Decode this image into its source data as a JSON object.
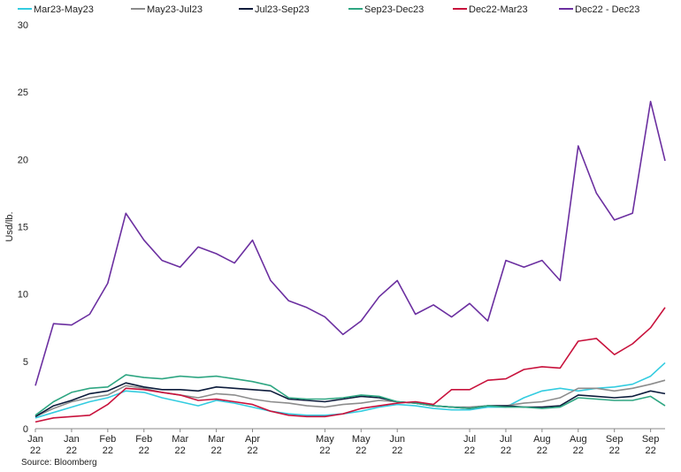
{
  "chart_data": {
    "type": "line",
    "title": "",
    "ylabel": "Usd/lb.",
    "xlabel": "",
    "ylim": [
      0,
      30
    ],
    "yticks": [
      0,
      5,
      10,
      15,
      20,
      25,
      30
    ],
    "x_tick_labels": [
      {
        "month": "Jan",
        "year": "22",
        "t": 0.0
      },
      {
        "month": "Jan",
        "year": "22",
        "t": 0.5
      },
      {
        "month": "Feb",
        "year": "22",
        "t": 1.0
      },
      {
        "month": "Feb",
        "year": "22",
        "t": 1.5
      },
      {
        "month": "Mar",
        "year": "22",
        "t": 2.0
      },
      {
        "month": "Mar",
        "year": "22",
        "t": 2.5
      },
      {
        "month": "Apr",
        "year": "22",
        "t": 3.0
      },
      {
        "month": "May",
        "year": "22",
        "t": 4.0
      },
      {
        "month": "May",
        "year": "22",
        "t": 4.5
      },
      {
        "month": "Jun",
        "year": "22",
        "t": 5.0
      },
      {
        "month": "Jul",
        "year": "22",
        "t": 6.0
      },
      {
        "month": "Jul",
        "year": "22",
        "t": 6.5
      },
      {
        "month": "Aug",
        "year": "22",
        "t": 7.0
      },
      {
        "month": "Aug",
        "year": "22",
        "t": 7.5
      },
      {
        "month": "Sep",
        "year": "22",
        "t": 8.0
      },
      {
        "month": "Sep",
        "year": "22",
        "t": 8.5
      }
    ],
    "x": [
      0,
      0.25,
      0.5,
      0.75,
      1.0,
      1.25,
      1.5,
      1.75,
      2.0,
      2.25,
      2.5,
      2.75,
      3.0,
      3.25,
      3.5,
      3.75,
      4.0,
      4.25,
      4.5,
      4.75,
      5.0,
      5.25,
      5.5,
      5.75,
      6.0,
      6.25,
      6.5,
      6.75,
      7.0,
      7.25,
      7.5,
      7.75,
      8.0,
      8.25,
      8.5,
      8.7
    ],
    "series": [
      {
        "name": "Mar23-May23",
        "color": "#33CCE0",
        "values": [
          0.8,
          1.2,
          1.6,
          2.0,
          2.3,
          2.8,
          2.7,
          2.3,
          2.0,
          1.7,
          2.1,
          1.9,
          1.6,
          1.3,
          1.1,
          1.0,
          1.0,
          1.1,
          1.3,
          1.6,
          1.8,
          1.7,
          1.5,
          1.4,
          1.4,
          1.6,
          1.6,
          2.3,
          2.8,
          3.0,
          2.8,
          3.0,
          3.1,
          3.3,
          3.9,
          4.9
        ]
      },
      {
        "name": "May23-Jul23",
        "color": "#8C8C8C",
        "values": [
          0.9,
          1.5,
          2.0,
          2.3,
          2.5,
          3.2,
          3.0,
          2.7,
          2.5,
          2.3,
          2.6,
          2.5,
          2.2,
          2.0,
          1.9,
          1.7,
          1.6,
          1.8,
          1.9,
          2.1,
          2.0,
          1.9,
          1.7,
          1.6,
          1.6,
          1.7,
          1.7,
          1.9,
          2.0,
          2.3,
          3.0,
          3.0,
          2.8,
          3.0,
          3.3,
          3.6
        ]
      },
      {
        "name": "Jul23-Sep23",
        "color": "#0D1C3C",
        "values": [
          0.9,
          1.7,
          2.1,
          2.6,
          2.8,
          3.4,
          3.1,
          2.9,
          2.9,
          2.8,
          3.1,
          3.0,
          2.9,
          2.8,
          2.2,
          2.1,
          2.0,
          2.2,
          2.4,
          2.3,
          2.0,
          1.9,
          1.7,
          1.6,
          1.5,
          1.7,
          1.7,
          1.6,
          1.6,
          1.7,
          2.5,
          2.4,
          2.3,
          2.4,
          2.8,
          2.6
        ]
      },
      {
        "name": "Sep23-Dec23",
        "color": "#2EA682",
        "values": [
          1.0,
          2.0,
          2.7,
          3.0,
          3.1,
          4.0,
          3.8,
          3.7,
          3.9,
          3.8,
          3.9,
          3.7,
          3.5,
          3.2,
          2.3,
          2.2,
          2.2,
          2.3,
          2.5,
          2.4,
          2.0,
          1.9,
          1.7,
          1.6,
          1.5,
          1.7,
          1.6,
          1.6,
          1.5,
          1.6,
          2.3,
          2.2,
          2.1,
          2.1,
          2.4,
          1.7
        ]
      },
      {
        "name": "Dec22-Mar23",
        "color": "#C8123C",
        "values": [
          0.5,
          0.8,
          0.9,
          1.0,
          1.8,
          3.0,
          2.9,
          2.7,
          2.5,
          2.1,
          2.2,
          2.0,
          1.8,
          1.3,
          1.0,
          0.9,
          0.9,
          1.1,
          1.5,
          1.7,
          1.9,
          2.0,
          1.8,
          2.9,
          2.9,
          3.6,
          3.7,
          4.4,
          4.6,
          4.5,
          6.5,
          6.7,
          5.5,
          6.3,
          7.5,
          9.0
        ]
      },
      {
        "name": "Dec22 - Dec23",
        "color": "#6B2FA0",
        "values": [
          3.2,
          7.8,
          7.7,
          8.5,
          10.8,
          16.0,
          14.0,
          12.5,
          12.0,
          13.5,
          13.0,
          12.3,
          14.0,
          11.0,
          9.5,
          9.0,
          8.3,
          7.0,
          8.0,
          9.8,
          11.0,
          8.5,
          9.2,
          8.3,
          9.3,
          8.0,
          12.5,
          12.0,
          12.5,
          11.0,
          21.0,
          17.5,
          15.5,
          16.0,
          24.3,
          19.9
        ]
      }
    ],
    "legend_position": "top",
    "grid": false,
    "source": "Source: Bloomberg"
  }
}
